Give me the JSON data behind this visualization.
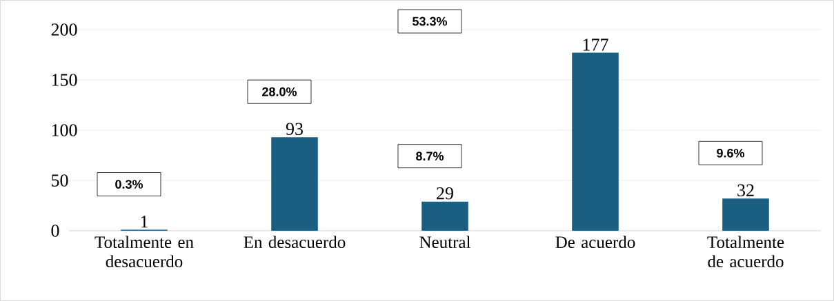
{
  "chart_data": {
    "type": "bar",
    "categories": [
      "Totalmente en desacuerdo",
      "En desacuerdo",
      "Neutral",
      "De acuerdo",
      "Totalmente de acuerdo"
    ],
    "values": [
      1,
      93,
      29,
      177,
      32
    ],
    "color": "#1a5f82",
    "ylim": [
      0,
      200
    ],
    "yticks": [
      0,
      50,
      100,
      150,
      200
    ],
    "grid": "y",
    "data_labels": true,
    "annotations": [
      "0.3%",
      "28.0%",
      "8.7%",
      "53.3%",
      "9.6%"
    ]
  }
}
